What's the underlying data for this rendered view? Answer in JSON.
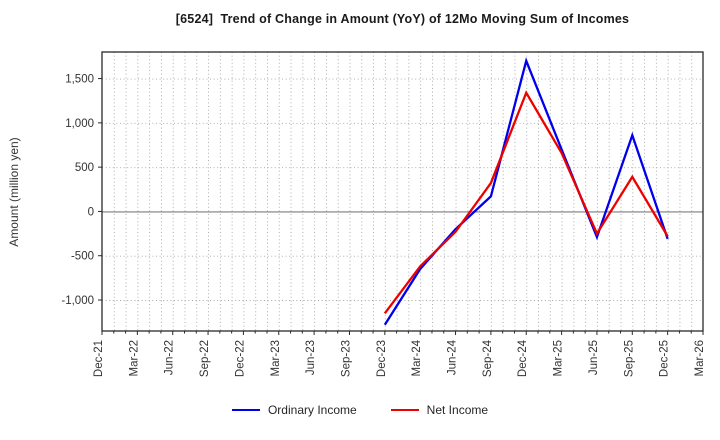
{
  "title": "[6524]  Trend of Change in Amount (YoY) of 12Mo Moving Sum of Incomes",
  "chart_data": {
    "type": "line",
    "title": "[6524]  Trend of Change in Amount (YoY) of 12Mo Moving Sum of Incomes",
    "xlabel": "",
    "ylabel": "Amount (million yen)",
    "x_axis": {
      "tick_labels": [
        "Dec-21",
        "Mar-22",
        "Jun-22",
        "Sep-22",
        "Dec-22",
        "Mar-23",
        "Jun-23",
        "Sep-23",
        "Dec-23",
        "Mar-24",
        "Jun-24",
        "Sep-24",
        "Dec-24",
        "Mar-25",
        "Jun-25",
        "Sep-25",
        "Dec-25",
        "Mar-26"
      ],
      "months_per_tick": 3,
      "total_months": 51,
      "minor_grid": "monthly-dotted"
    },
    "y_axis": {
      "label": "Amount (million yen)",
      "min": -1350,
      "max": 1800,
      "ticks": [
        1500,
        1000,
        500,
        0,
        -500,
        -1000
      ],
      "tick_labels": [
        "1,500",
        "1,000",
        "500",
        "0",
        "-500",
        "-1,000"
      ],
      "zero_line": "solid",
      "grid": "dotted"
    },
    "legend_position": "bottom-center",
    "series": [
      {
        "name": "Ordinary Income",
        "color": "#0000ee",
        "x_labels": [
          "Dec-23",
          "Mar-24",
          "Jun-24",
          "Sep-24",
          "Dec-24",
          "Mar-25",
          "Jun-25",
          "Sep-25",
          "Dec-25"
        ],
        "x_month_offsets": [
          24,
          27,
          30,
          33,
          36,
          39,
          42,
          45,
          48
        ],
        "values": [
          -1280,
          -650,
          -200,
          170,
          1700,
          700,
          -290,
          860,
          -310
        ]
      },
      {
        "name": "Net Income",
        "color": "#ee0000",
        "x_labels": [
          "Dec-23",
          "Mar-24",
          "Jun-24",
          "Sep-24",
          "Dec-24",
          "Mar-25",
          "Jun-25",
          "Sep-25",
          "Dec-25"
        ],
        "x_month_offsets": [
          24,
          27,
          30,
          33,
          36,
          39,
          42,
          45,
          48
        ],
        "values": [
          -1150,
          -620,
          -230,
          320,
          1340,
          660,
          -250,
          390,
          -280
        ]
      }
    ],
    "colors": {
      "grid": "#a6a6a6",
      "zero_line": "#7d7d7d",
      "spine": "#2a2a2a",
      "tick_text": "#333333"
    }
  }
}
